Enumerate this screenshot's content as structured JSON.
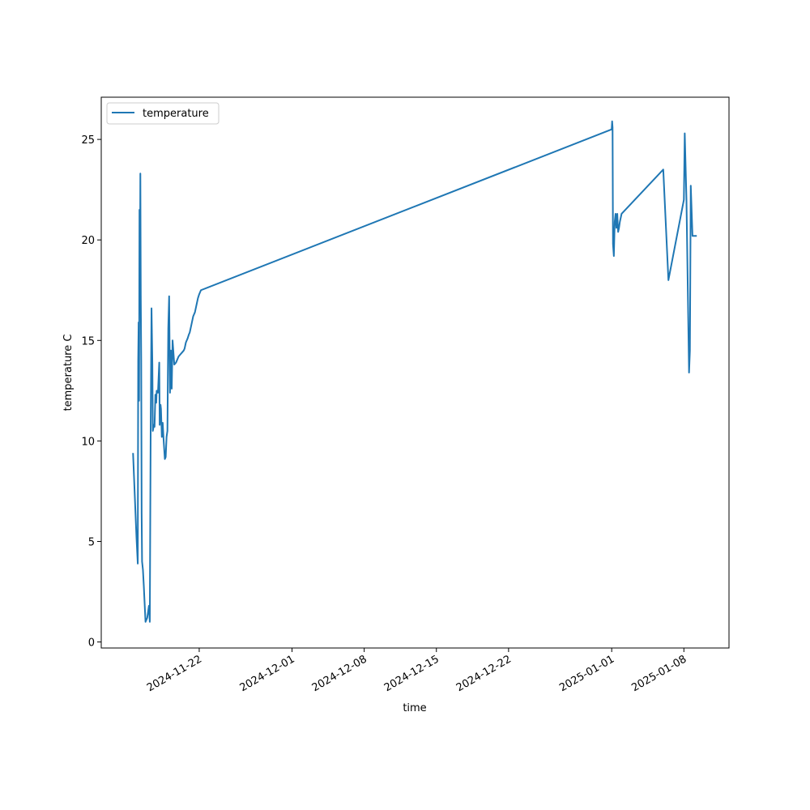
{
  "chart_data": {
    "type": "line",
    "title": "",
    "xlabel": "time",
    "ylabel": "temperature C",
    "xlim": [
      "2024-11-12T12:00",
      "2025-01-12T09:00"
    ],
    "ylim": [
      -0.3,
      27.1
    ],
    "grid": false,
    "legend_position": "top-left",
    "x_ticks": [
      "2024-11-22",
      "2024-12-01",
      "2024-12-08",
      "2024-12-15",
      "2024-12-22",
      "2025-01-01",
      "2025-01-08"
    ],
    "y_ticks": [
      0,
      5,
      10,
      15,
      20,
      25
    ],
    "series": [
      {
        "name": "temperature",
        "color": "#1f77b4",
        "x": [
          "2024-11-15T14:00",
          "2024-11-15T22:00",
          "2024-11-16T01:00",
          "2024-11-16T02:00",
          "2024-11-16T03:00",
          "2024-11-16T04:00",
          "2024-11-16T05:00",
          "2024-11-16T06:00",
          "2024-11-16T07:00",
          "2024-11-16T08:00",
          "2024-11-16T09:00",
          "2024-11-16T10:00",
          "2024-11-16T11:00",
          "2024-11-16T13:00",
          "2024-11-16T15:00",
          "2024-11-16T19:00",
          "2024-11-16T23:00",
          "2024-11-17T03:00",
          "2024-11-17T05:00",
          "2024-11-17T07:00",
          "2024-11-17T09:00",
          "2024-11-17T11:00",
          "2024-11-17T12:00",
          "2024-11-17T13:00",
          "2024-11-17T14:00",
          "2024-11-17T16:00",
          "2024-11-17T18:00",
          "2024-11-17T20:00",
          "2024-11-17T21:00",
          "2024-11-18T00:00",
          "2024-11-18T03:00",
          "2024-11-18T04:00",
          "2024-11-18T06:00",
          "2024-11-18T07:00",
          "2024-11-18T09:00",
          "2024-11-18T11:00",
          "2024-11-18T13:00",
          "2024-11-18T16:00",
          "2024-11-18T18:00",
          "2024-11-18T20:00",
          "2024-11-18T22:00",
          "2024-11-19T00:00",
          "2024-11-19T02:00",
          "2024-11-19T04:00",
          "2024-11-19T06:00",
          "2024-11-19T08:00",
          "2024-11-19T10:00",
          "2024-11-19T14:00",
          "2024-11-19T18:00",
          "2024-11-19T20:00",
          "2024-11-19T22:00",
          "2024-11-20T00:00",
          "2024-11-20T04:00",
          "2024-11-20T08:00",
          "2024-11-20T12:00",
          "2024-11-20T14:00",
          "2024-11-20T15:00",
          "2024-11-20T16:00",
          "2024-11-20T17:00",
          "2024-11-20T19:00",
          "2024-11-20T21:00",
          "2024-11-21T00:00",
          "2024-11-21T02:00",
          "2024-11-21T03:00",
          "2024-11-21T04:00",
          "2024-11-21T05:00",
          "2024-11-21T06:00",
          "2024-11-21T07:00",
          "2024-11-21T08:00",
          "2024-11-21T10:00",
          "2024-11-21T12:00",
          "2024-11-21T14:00",
          "2024-11-21T15:00",
          "2024-11-21T17:00",
          "2024-11-21T18:00",
          "2024-11-21T19:00",
          "2024-11-21T20:00",
          "2024-11-21T21:00",
          "2024-11-22T00:00",
          "2024-11-22T02:00",
          "2024-11-22T04:00",
          "2025-01-01T00:00",
          "2025-01-01T01:00",
          "2025-01-01T02:00",
          "2025-01-01T03:00",
          "2025-01-01T05:00",
          "2025-01-01T07:00",
          "2025-01-01T09:00",
          "2025-01-01T11:00",
          "2025-01-01T13:00",
          "2025-01-01T15:00",
          "2025-01-01T17:00",
          "2025-01-01T19:00",
          "2025-01-01T21:00",
          "2025-01-01T23:00",
          "2025-01-06T00:00",
          "2025-01-06T12:00",
          "2025-01-08T00:00",
          "2025-01-08T02:00",
          "2025-01-08T06:00",
          "2025-01-08T12:00",
          "2025-01-08T14:00",
          "2025-01-08T16:00",
          "2025-01-08T20:00",
          "2025-01-08T22:00",
          "2025-01-09T00:00",
          "2025-01-09T02:00",
          "2025-01-09T04:00",
          "2025-01-09T06:00"
        ],
        "y": [
          9.4,
          5.2,
          3.9,
          14.0,
          15.9,
          12.0,
          21.5,
          16.9,
          23.3,
          17.2,
          14.0,
          6.4,
          4.0,
          3.6,
          2.8,
          1.0,
          1.2,
          1.8,
          1.0,
          10.5,
          16.6,
          13.8,
          10.5,
          10.6,
          10.8,
          10.7,
          12.3,
          11.9,
          12.5,
          12.4,
          13.9,
          10.8,
          11.8,
          11.6,
          10.2,
          10.9,
          10.1,
          9.1,
          9.2,
          10.2,
          10.5,
          15.6,
          17.2,
          12.4,
          14.5,
          12.6,
          15.0,
          13.8,
          13.9,
          14.0,
          14.1,
          14.2,
          14.3,
          14.4,
          14.5,
          14.6,
          14.7,
          14.8,
          14.9,
          15.0,
          15.1,
          15.3,
          15.4,
          15.5,
          15.6,
          15.7,
          15.8,
          15.9,
          16.0,
          16.2,
          16.3,
          16.4,
          16.5,
          16.7,
          16.8,
          16.9,
          17.0,
          17.1,
          17.3,
          17.4,
          17.5,
          25.5,
          25.9,
          25.6,
          19.8,
          19.2,
          20.9,
          21.3,
          20.6,
          21.3,
          20.4,
          20.6,
          20.9,
          21.1,
          21.3,
          23.5,
          18.0,
          22.0,
          25.3,
          22.0,
          13.4,
          14.5,
          22.7,
          20.2,
          20.2,
          20.2,
          20.2,
          20.2,
          20.2
        ]
      }
    ]
  }
}
